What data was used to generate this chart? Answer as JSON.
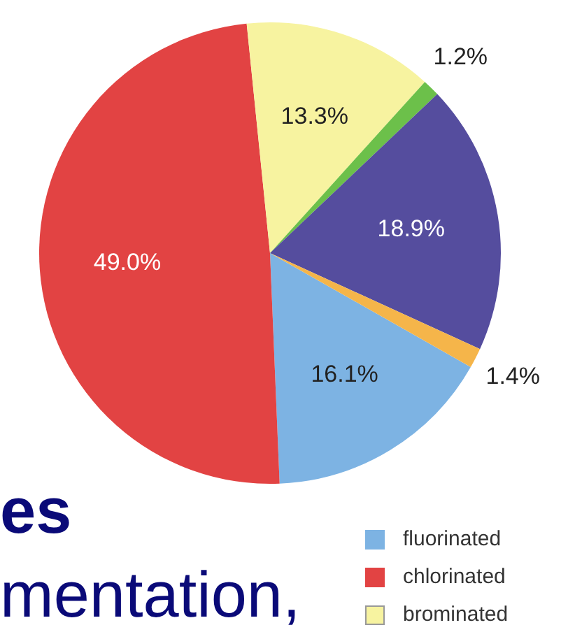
{
  "chart_data": {
    "type": "pie",
    "categories": [
      "fluorinated",
      "chlorinated",
      "brominated",
      null,
      null,
      null
    ],
    "values": [
      16.1,
      49.0,
      13.3,
      1.2,
      18.9,
      1.4
    ],
    "colors": [
      "#7db3e3",
      "#e24343",
      "#f7f3a0",
      "#6cc04a",
      "#554d9e",
      "#f5b54a"
    ],
    "value_labels": [
      "16.1%",
      "49.0%",
      "13.3%",
      "1.2%",
      "18.9%",
      "1.4%"
    ],
    "legend": "bottom right",
    "annotations": [
      "es",
      "mentation,"
    ]
  }
}
